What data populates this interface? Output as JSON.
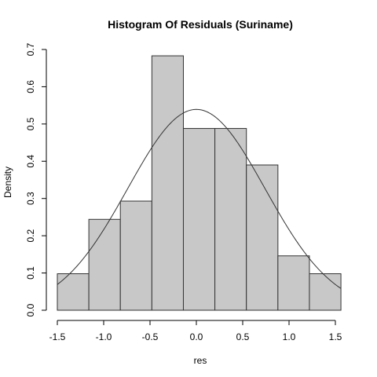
{
  "chart_data": {
    "type": "bar",
    "title": "Histogram Of Residuals (Suriname)",
    "xlabel": "res",
    "ylabel": "Density",
    "xlim": [
      -1.5,
      1.6
    ],
    "ylim": [
      0,
      0.7
    ],
    "x_ticks": [
      "-1.5",
      "-1.0",
      "-0.5",
      "0.0",
      "0.5",
      "1.0",
      "1.5"
    ],
    "y_ticks": [
      "0.0",
      "0.1",
      "0.2",
      "0.3",
      "0.4",
      "0.5",
      "0.6",
      "0.7"
    ],
    "bins": [
      {
        "x0": -1.5,
        "x1": -1.16,
        "density": 0.098
      },
      {
        "x0": -1.16,
        "x1": -0.82,
        "density": 0.244
      },
      {
        "x0": -0.82,
        "x1": -0.48,
        "density": 0.293
      },
      {
        "x0": -0.48,
        "x1": -0.14,
        "density": 0.683
      },
      {
        "x0": -0.14,
        "x1": 0.2,
        "density": 0.488
      },
      {
        "x0": 0.2,
        "x1": 0.54,
        "density": 0.488
      },
      {
        "x0": 0.54,
        "x1": 0.88,
        "density": 0.39
      },
      {
        "x0": 0.88,
        "x1": 1.22,
        "density": 0.146
      },
      {
        "x0": 1.22,
        "x1": 1.56,
        "density": 0.098
      }
    ],
    "density_curve": {
      "distribution": "normal",
      "mean": 0.0,
      "sd": 0.74,
      "x_range": [
        -1.5,
        1.56
      ]
    },
    "bar_fill": "#c8c8c8",
    "bar_stroke": "#333333",
    "grid": false
  }
}
